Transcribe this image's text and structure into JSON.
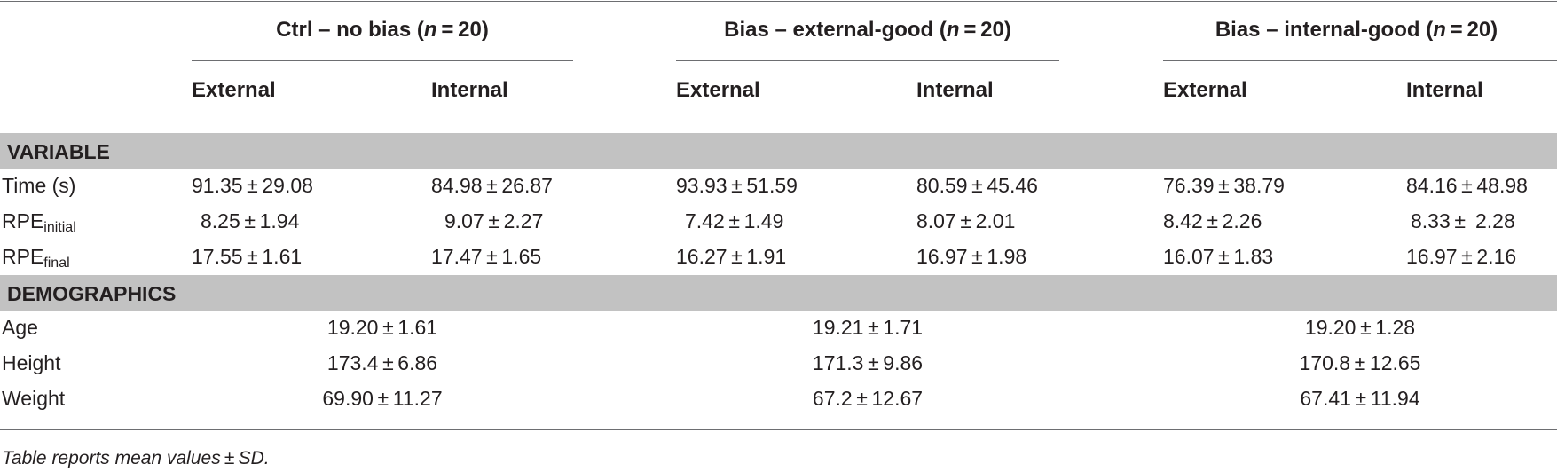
{
  "header": {
    "groups": [
      {
        "label": "Ctrl – no bias (",
        "n": "n",
        "tail": " = 20)"
      },
      {
        "label": "Bias – external-good (",
        "n": "n",
        "tail": " = 20)"
      },
      {
        "label": "Bias – internal-good (",
        "n": "n",
        "tail": " = 20)"
      }
    ],
    "columns": [
      "External",
      "Internal",
      "External",
      "Internal",
      "External",
      "Internal"
    ]
  },
  "sections": {
    "variable": "VARIABLE",
    "demographics": "DEMOGRAPHICS"
  },
  "variable_rows": [
    {
      "label": "Time (s)",
      "label_sub": "",
      "values": [
        "91.35 ± 29.08",
        "84.98 ± 26.87",
        "93.93 ± 51.59",
        "80.59 ± 45.46",
        "76.39 ± 38.79",
        "84.16 ± 48.98"
      ]
    },
    {
      "label": "RPE",
      "label_sub": "initial",
      "values": [
        "8.25 ± 1.94",
        "9.07 ± 2.27",
        "7.42 ± 1.49",
        "8.07 ± 2.01",
        "8.42 ± 2.26",
        "8.33 ±  2.28"
      ]
    },
    {
      "label": "RPE",
      "label_sub": "final",
      "values": [
        "17.55 ± 1.61",
        "17.47 ± 1.65",
        "16.27 ± 1.91",
        "16.97 ± 1.98",
        "16.07 ± 1.83",
        "16.97 ± 2.16"
      ]
    }
  ],
  "demographic_rows": [
    {
      "label": "Age",
      "values": [
        "19.20 ± 1.61",
        "19.21 ± 1.71",
        "19.20 ± 1.28"
      ]
    },
    {
      "label": "Height",
      "values": [
        "173.4 ± 6.86",
        "171.3 ± 9.86",
        "170.8 ± 12.65"
      ]
    },
    {
      "label": "Weight",
      "values": [
        "69.90 ± 11.27",
        "67.2 ± 12.67",
        "67.41 ± 11.94"
      ]
    }
  ],
  "footnote": "Table reports mean values ± SD."
}
